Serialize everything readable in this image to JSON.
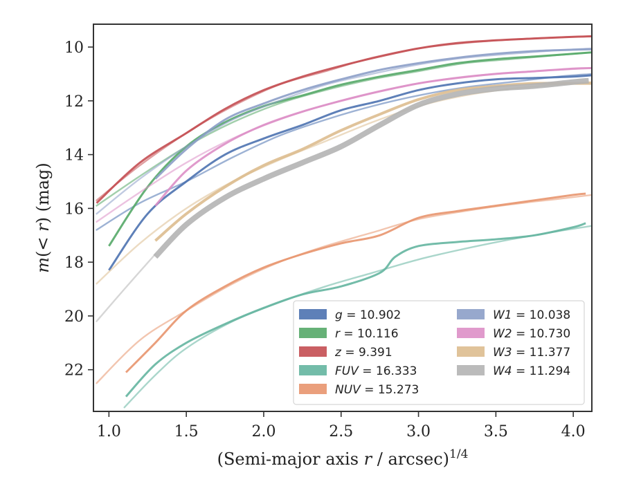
{
  "chart_data": {
    "type": "line",
    "title": "",
    "xlabel": "(Semi-major axis r / arcsec)^1/4",
    "ylabel": "m(< r) (mag)",
    "xlim": [
      0.9,
      4.12
    ],
    "ylim": [
      23.55,
      9.15
    ],
    "y_inverted": true,
    "xticks": [
      "1.0",
      "1.5",
      "2.0",
      "2.5",
      "3.0",
      "3.5",
      "4.0"
    ],
    "yticks": [
      "10",
      "12",
      "14",
      "16",
      "18",
      "20",
      "22"
    ],
    "grid": false,
    "legend_position": "lower-right",
    "series": [
      {
        "name": "g = 10.902",
        "color": "#4c72b0",
        "width": 3,
        "x": [
          1.0,
          1.25,
          1.5,
          1.75,
          2.0,
          2.25,
          2.5,
          2.75,
          3.0,
          3.25,
          3.5,
          3.75,
          4.0,
          4.12
        ],
        "y": [
          18.3,
          16.2,
          15.0,
          14.0,
          13.4,
          12.9,
          12.35,
          12.0,
          11.6,
          11.35,
          11.2,
          11.15,
          11.1,
          11.05
        ],
        "model_x": [
          0.92,
          1.2,
          1.5,
          1.8,
          2.1,
          2.4,
          2.7,
          3.0,
          3.3,
          3.6,
          3.9,
          4.12
        ],
        "model_y": [
          16.8,
          15.8,
          15.0,
          14.1,
          13.3,
          12.7,
          12.2,
          11.8,
          11.5,
          11.3,
          11.1,
          11.0
        ]
      },
      {
        "name": "r = 10.116",
        "color": "#55a868",
        "width": 3,
        "x": [
          1.0,
          1.25,
          1.5,
          1.75,
          2.0,
          2.25,
          2.5,
          2.75,
          3.0,
          3.25,
          3.5,
          3.75,
          4.0,
          4.12
        ],
        "y": [
          17.4,
          15.2,
          13.7,
          12.8,
          12.2,
          11.8,
          11.4,
          11.1,
          10.85,
          10.6,
          10.45,
          10.35,
          10.25,
          10.2
        ],
        "model_x": [
          0.92,
          1.2,
          1.5,
          1.8,
          2.1,
          2.4,
          2.7,
          3.0,
          3.3,
          3.6,
          3.9,
          4.12
        ],
        "model_y": [
          15.9,
          14.8,
          13.7,
          12.8,
          12.1,
          11.6,
          11.2,
          10.9,
          10.6,
          10.45,
          10.3,
          10.2
        ]
      },
      {
        "name": "z = 9.391",
        "color": "#c44e52",
        "width": 3,
        "x": [
          0.92,
          1.2,
          1.5,
          1.75,
          2.0,
          2.25,
          2.5,
          2.75,
          3.0,
          3.25,
          3.5,
          3.75,
          4.0,
          4.12
        ],
        "y": [
          15.8,
          14.3,
          13.2,
          12.3,
          11.6,
          11.1,
          10.7,
          10.35,
          10.05,
          9.85,
          9.75,
          9.68,
          9.62,
          9.6
        ],
        "model_x": [
          0.92,
          1.2,
          1.5,
          1.8,
          2.1,
          2.4,
          2.7,
          3.0,
          3.3,
          3.6,
          3.9,
          4.12
        ],
        "model_y": [
          15.7,
          14.4,
          13.2,
          12.2,
          11.4,
          10.9,
          10.4,
          10.05,
          9.85,
          9.72,
          9.64,
          9.6
        ]
      },
      {
        "name": "FUV = 16.333",
        "color": "#64b5a0",
        "width": 3,
        "x": [
          1.11,
          1.3,
          1.5,
          1.75,
          2.0,
          2.25,
          2.5,
          2.75,
          2.85,
          3.0,
          3.25,
          3.5,
          3.75,
          4.0,
          4.08
        ],
        "y": [
          23.0,
          21.8,
          21.0,
          20.3,
          19.7,
          19.2,
          18.9,
          18.4,
          17.8,
          17.4,
          17.25,
          17.15,
          17.0,
          16.7,
          16.55
        ],
        "model_x": [
          1.1,
          1.3,
          1.5,
          1.8,
          2.1,
          2.4,
          2.7,
          3.0,
          3.3,
          3.6,
          3.9,
          4.12
        ],
        "model_y": [
          23.4,
          22.2,
          21.2,
          20.2,
          19.5,
          18.9,
          18.4,
          17.9,
          17.5,
          17.15,
          16.85,
          16.65
        ]
      },
      {
        "name": "NUV = 15.273",
        "color": "#e8956e",
        "width": 3,
        "x": [
          1.11,
          1.3,
          1.5,
          1.75,
          2.0,
          2.25,
          2.5,
          2.75,
          3.0,
          3.25,
          3.5,
          3.75,
          4.0,
          4.08
        ],
        "y": [
          22.1,
          21.0,
          19.8,
          18.9,
          18.2,
          17.7,
          17.3,
          17.0,
          16.35,
          16.1,
          15.9,
          15.7,
          15.5,
          15.45
        ],
        "model_x": [
          0.92,
          1.2,
          1.5,
          1.8,
          2.1,
          2.4,
          2.7,
          3.0,
          3.3,
          3.6,
          3.9,
          4.12
        ],
        "model_y": [
          22.5,
          20.9,
          19.8,
          18.8,
          18.0,
          17.4,
          16.9,
          16.4,
          16.1,
          15.85,
          15.65,
          15.5
        ]
      },
      {
        "name": "W1 = 10.038",
        "color": "#8c9ec8",
        "width": 3,
        "x": [
          1.3,
          1.5,
          1.75,
          2.0,
          2.25,
          2.5,
          2.75,
          3.0,
          3.25,
          3.5,
          3.75,
          4.0,
          4.12
        ],
        "y": [
          14.9,
          13.8,
          12.7,
          12.1,
          11.6,
          11.2,
          10.85,
          10.6,
          10.4,
          10.25,
          10.15,
          10.1,
          10.08
        ],
        "model_x": [
          0.92,
          1.2,
          1.5,
          1.8,
          2.1,
          2.4,
          2.7,
          3.0,
          3.3,
          3.6,
          3.9,
          4.12
        ],
        "model_y": [
          16.2,
          14.9,
          13.7,
          12.7,
          12.0,
          11.4,
          11.0,
          10.65,
          10.4,
          10.25,
          10.12,
          10.05
        ]
      },
      {
        "name": "W2 = 10.730",
        "color": "#dd8fc6",
        "width": 3,
        "x": [
          1.3,
          1.5,
          1.75,
          2.0,
          2.25,
          2.5,
          2.75,
          3.0,
          3.25,
          3.5,
          3.75,
          4.0,
          4.12
        ],
        "y": [
          15.9,
          14.6,
          13.6,
          12.9,
          12.4,
          12.0,
          11.65,
          11.35,
          11.15,
          11.0,
          10.9,
          10.8,
          10.78
        ],
        "model_x": [
          0.92,
          1.2,
          1.5,
          1.8,
          2.1,
          2.4,
          2.7,
          3.0,
          3.3,
          3.6,
          3.9,
          4.12
        ],
        "model_y": [
          16.5,
          15.4,
          14.3,
          13.4,
          12.7,
          12.15,
          11.7,
          11.35,
          11.1,
          10.95,
          10.85,
          10.78
        ]
      },
      {
        "name": "W3 = 11.377",
        "color": "#ddbd8f",
        "width": 4,
        "x": [
          1.3,
          1.5,
          1.75,
          2.0,
          2.25,
          2.5,
          2.75,
          3.0,
          3.25,
          3.5,
          3.75,
          4.0,
          4.12
        ],
        "y": [
          17.2,
          16.2,
          15.2,
          14.4,
          13.8,
          13.1,
          12.5,
          11.95,
          11.6,
          11.45,
          11.35,
          11.35,
          11.35
        ],
        "model_x": [
          0.92,
          1.2,
          1.5,
          1.8,
          2.1,
          2.4,
          2.7,
          3.0,
          3.3,
          3.6,
          3.9,
          4.12
        ],
        "model_y": [
          18.8,
          17.3,
          16.0,
          15.0,
          14.2,
          13.5,
          12.8,
          12.2,
          11.8,
          11.55,
          11.4,
          11.3
        ]
      },
      {
        "name": "W4 = 11.294",
        "color": "#b4b4b4",
        "width": 8,
        "x": [
          1.3,
          1.5,
          1.75,
          2.0,
          2.25,
          2.5,
          2.75,
          3.0,
          3.25,
          3.5,
          3.75,
          4.0,
          4.1
        ],
        "y": [
          17.8,
          16.6,
          15.6,
          14.9,
          14.3,
          13.7,
          12.9,
          12.15,
          11.75,
          11.55,
          11.45,
          11.3,
          11.25
        ],
        "model_x": [
          0.92,
          1.1,
          1.3
        ],
        "model_y": [
          20.2,
          19.0,
          17.7
        ]
      }
    ]
  }
}
